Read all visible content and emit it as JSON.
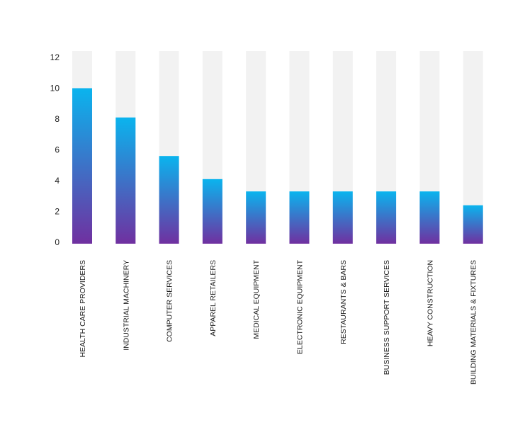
{
  "chart_data": {
    "type": "bar",
    "categories": [
      "HEALTH CARE PROVIDERS",
      "INDUSTRIAL MACHINERY",
      "COMPUTER SERVICES",
      "APPAREL RETAILERS",
      "MEDICAL EQUIPMENT",
      "ELECTRONIC EQUIPMENT",
      "RESTAURANTS & BARS",
      "BUSINESS SUPPORT SERVICES",
      "HEAVY CONSTRUCTION",
      "BUILDING MATERIALS & FIXTURES"
    ],
    "values": [
      10,
      8.1,
      5.6,
      4.1,
      3.3,
      3.3,
      3.3,
      3.3,
      3.3,
      2.4
    ],
    "yticks": [
      "0",
      "2",
      "4",
      "6",
      "8",
      "10",
      "12"
    ],
    "ylim": [
      0,
      12
    ],
    "title": "",
    "xlabel": "",
    "ylabel": "",
    "grid": false,
    "colors": {
      "bar_top": "#0ab4ee",
      "bar_bottom": "#7030a0",
      "track": "#f2f2f2"
    }
  }
}
